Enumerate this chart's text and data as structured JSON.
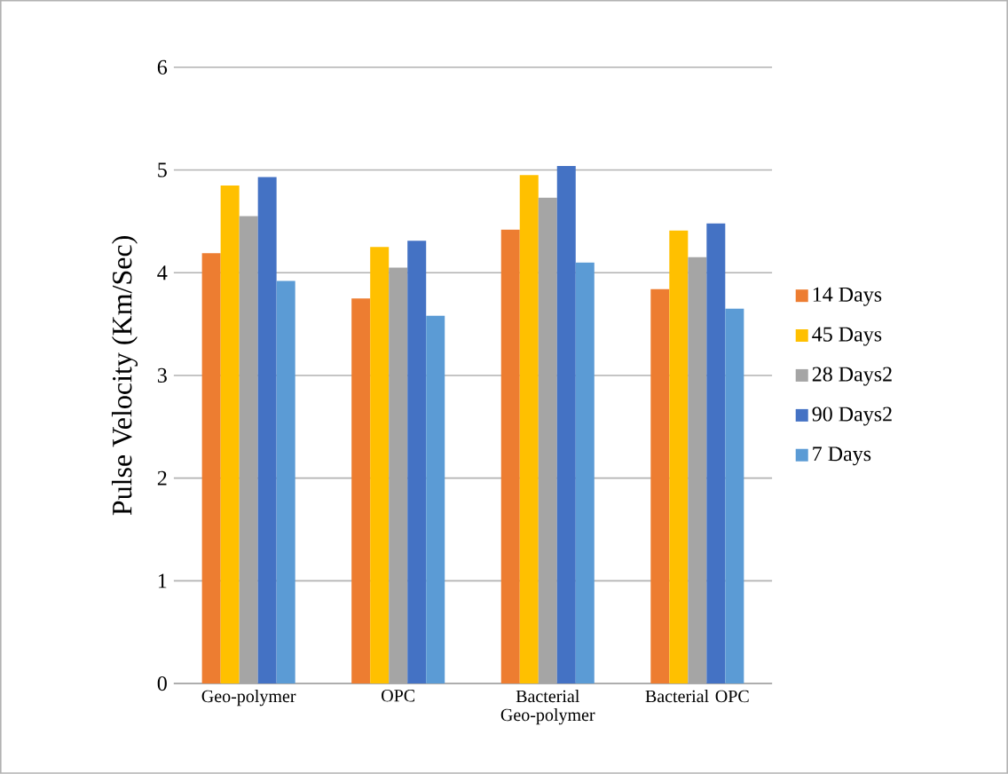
{
  "chart_data": {
    "type": "bar",
    "ylabel": "Pulse Velocity (Km/Sec)",
    "categories": [
      "Geo-polymer",
      "OPC",
      "Bacterial Geo-polymer",
      "Bacterial OPC"
    ],
    "series": [
      {
        "name": "14 Days",
        "color": "#ed7d31",
        "values": [
          4.19,
          3.75,
          4.42,
          3.84
        ]
      },
      {
        "name": "45 Days",
        "color": "#ffc000",
        "values": [
          4.85,
          4.25,
          4.95,
          4.41
        ]
      },
      {
        "name": "28 Days2",
        "color": "#a5a5a5",
        "values": [
          4.55,
          4.05,
          4.73,
          4.15
        ]
      },
      {
        "name": "90 Days2",
        "color": "#4472c4",
        "values": [
          4.93,
          4.31,
          5.04,
          4.48
        ]
      },
      {
        "name": "7 Days",
        "color": "#5b9bd5",
        "values": [
          3.92,
          3.58,
          4.1,
          3.65
        ]
      }
    ],
    "ylim": [
      0,
      6
    ],
    "yticks": [
      0,
      1,
      2,
      3,
      4,
      5,
      6
    ],
    "grid": "y",
    "legend": "right"
  }
}
